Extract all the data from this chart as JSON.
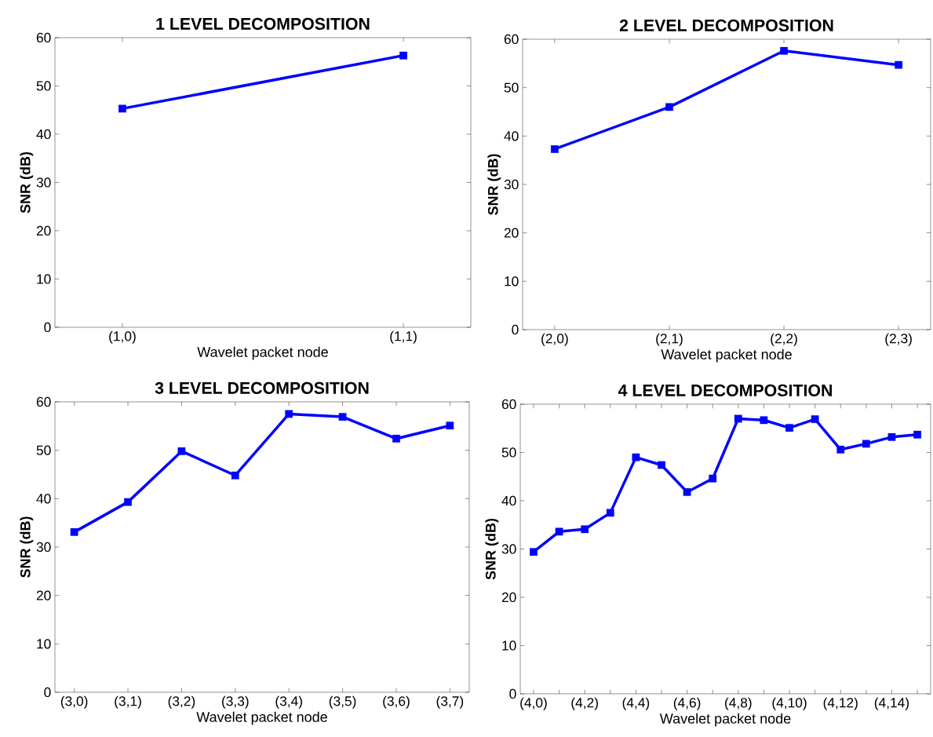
{
  "chart_data": [
    {
      "type": "line",
      "title": "1 LEVEL DECOMPOSITION",
      "xlabel": "Wavelet packet node",
      "ylabel": "SNR (dB)",
      "categories": [
        "(1,0)",
        "(1,1)"
      ],
      "marker": "square",
      "line_style": "solid",
      "ylim": [
        0,
        60
      ],
      "yticks": [
        0,
        10,
        20,
        30,
        40,
        50,
        60
      ],
      "series": [
        {
          "color": "#0000ff",
          "values": [
            45.3,
            56.3
          ]
        }
      ]
    },
    {
      "type": "line",
      "title": "2 LEVEL DECOMPOSITION",
      "xlabel": "Wavelet packet node",
      "ylabel": "SNR (dB)",
      "categories": [
        "(2,0)",
        "(2,1)",
        "(2,2)",
        "(2,3)"
      ],
      "marker": "square",
      "line_style": "solid",
      "ylim": [
        0,
        60
      ],
      "yticks": [
        0,
        10,
        20,
        30,
        40,
        50,
        60
      ],
      "series": [
        {
          "color": "#0000ff",
          "values": [
            37.3,
            46.0,
            57.6,
            54.7
          ]
        }
      ]
    },
    {
      "type": "line",
      "title": "3 LEVEL DECOMPOSITION",
      "xlabel": "Wavelet packet node",
      "ylabel": "SNR (dB)",
      "categories": [
        "(3,0)",
        "(3,1)",
        "(3,2)",
        "(3,3)",
        "(3,4)",
        "(3,5)",
        "(3,6)",
        "(3,7)"
      ],
      "marker": "square",
      "line_style": "solid",
      "ylim": [
        0,
        60
      ],
      "yticks": [
        0,
        10,
        20,
        30,
        40,
        50,
        60
      ],
      "series": [
        {
          "color": "#0000ff",
          "values": [
            33.1,
            39.3,
            49.8,
            44.8,
            57.5,
            56.9,
            52.4,
            55.1
          ]
        }
      ]
    },
    {
      "type": "line",
      "title": "4 LEVEL DECOMPOSITION",
      "xlabel": "Wavelet packet node",
      "ylabel": "SNR (dB)",
      "categories": [
        "(4,0)",
        null,
        "(4,2)",
        null,
        "(4,4)",
        null,
        "(4,6)",
        null,
        "(4,8)",
        null,
        "(4,10)",
        null,
        "(4,12)",
        null,
        "(4,14)",
        null
      ],
      "marker": "square",
      "line_style": "solid",
      "ylim": [
        0,
        60
      ],
      "yticks": [
        0,
        10,
        20,
        30,
        40,
        50,
        60
      ],
      "series": [
        {
          "color": "#0000ff",
          "values": [
            29.4,
            33.6,
            34.1,
            37.5,
            49.0,
            47.4,
            41.8,
            44.6,
            57.0,
            56.7,
            55.1,
            56.9,
            50.6,
            51.8,
            53.2,
            53.7
          ]
        }
      ]
    }
  ]
}
